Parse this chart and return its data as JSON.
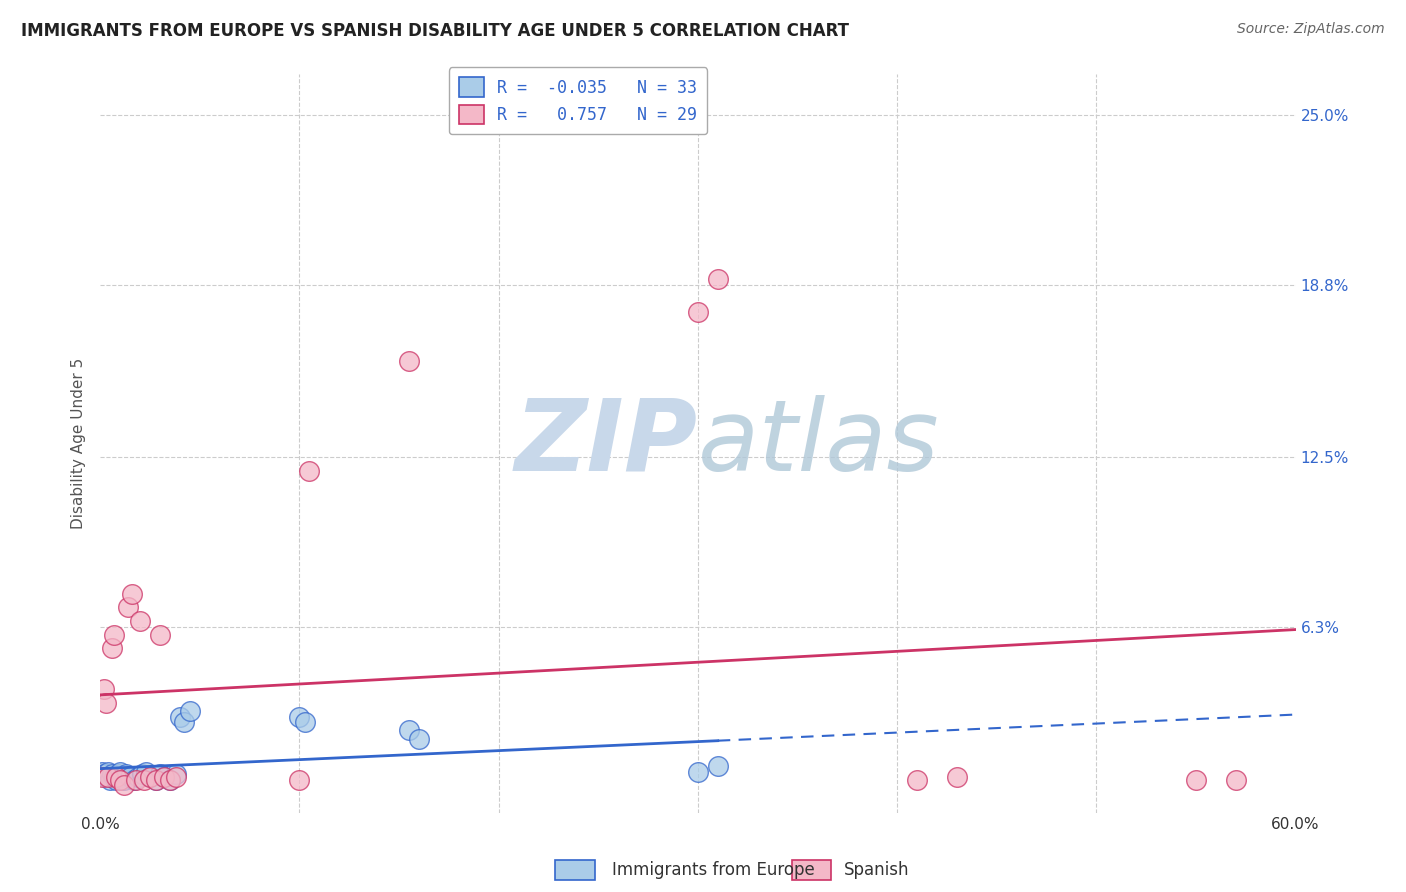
{
  "title": "IMMIGRANTS FROM EUROPE VS SPANISH DISABILITY AGE UNDER 5 CORRELATION CHART",
  "source": "Source: ZipAtlas.com",
  "xlabel_blue": "Immigrants from Europe",
  "xlabel_pink": "Spanish",
  "ylabel": "Disability Age Under 5",
  "xlim": [
    0.0,
    0.6
  ],
  "ylim": [
    -0.005,
    0.265
  ],
  "xticks": [
    0.0,
    0.1,
    0.2,
    0.3,
    0.4,
    0.5,
    0.6
  ],
  "xticklabels": [
    "0.0%",
    "",
    "",
    "",
    "",
    "",
    "60.0%"
  ],
  "yticks": [
    0.0,
    0.063,
    0.125,
    0.188,
    0.25
  ],
  "yticklabels": [
    "",
    "6.3%",
    "12.5%",
    "18.8%",
    "25.0%"
  ],
  "legend_blue_r": "R = -0.035",
  "legend_blue_n": "N = 33",
  "legend_pink_r": "R =  0.757",
  "legend_pink_n": "N = 29",
  "blue_color": "#aacce8",
  "pink_color": "#f4b8c8",
  "trendline_blue_color": "#3366cc",
  "trendline_pink_color": "#cc3366",
  "watermark_zip": "ZIP",
  "watermark_atlas": "atlas",
  "watermark_color": "#c8d8ea",
  "blue_scatter_x": [
    0.001,
    0.002,
    0.003,
    0.004,
    0.005,
    0.006,
    0.007,
    0.008,
    0.009,
    0.01,
    0.011,
    0.012,
    0.013,
    0.015,
    0.017,
    0.019,
    0.021,
    0.023,
    0.025,
    0.028,
    0.03,
    0.032,
    0.035,
    0.038,
    0.04,
    0.042,
    0.045,
    0.1,
    0.103,
    0.155,
    0.16,
    0.3,
    0.31
  ],
  "blue_scatter_y": [
    0.01,
    0.009,
    0.008,
    0.01,
    0.007,
    0.009,
    0.008,
    0.007,
    0.009,
    0.01,
    0.008,
    0.007,
    0.009,
    0.008,
    0.007,
    0.008,
    0.009,
    0.01,
    0.008,
    0.007,
    0.009,
    0.008,
    0.007,
    0.009,
    0.03,
    0.028,
    0.032,
    0.03,
    0.028,
    0.025,
    0.022,
    0.01,
    0.012
  ],
  "pink_scatter_x": [
    0.001,
    0.002,
    0.003,
    0.004,
    0.006,
    0.007,
    0.008,
    0.01,
    0.012,
    0.014,
    0.016,
    0.018,
    0.02,
    0.022,
    0.025,
    0.028,
    0.03,
    0.032,
    0.035,
    0.038,
    0.1,
    0.105,
    0.155,
    0.3,
    0.31,
    0.41,
    0.43,
    0.55,
    0.57
  ],
  "pink_scatter_y": [
    0.008,
    0.04,
    0.035,
    0.008,
    0.055,
    0.06,
    0.008,
    0.007,
    0.005,
    0.07,
    0.075,
    0.007,
    0.065,
    0.007,
    0.008,
    0.007,
    0.06,
    0.008,
    0.007,
    0.008,
    0.007,
    0.12,
    0.16,
    0.178,
    0.19,
    0.007,
    0.008,
    0.007,
    0.007
  ]
}
